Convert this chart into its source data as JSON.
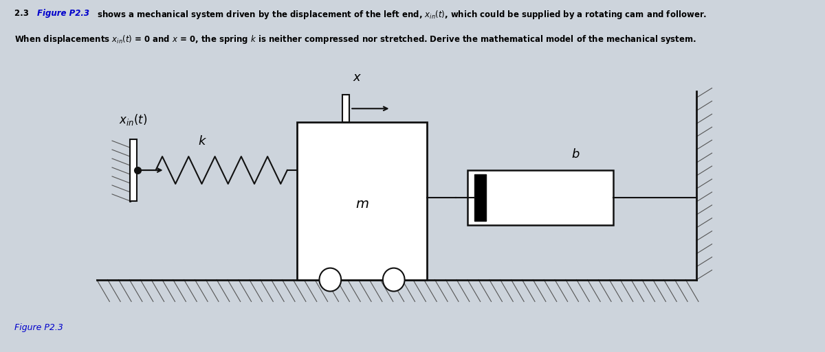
{
  "bg_color": "#cdd4dc",
  "figure_label": "Figure P2.3",
  "label_xin": "$x_{in}(t)$",
  "label_x": "$x$",
  "label_k": "$k$",
  "label_m": "$m$",
  "label_b": "$b$",
  "hatch_color": "#555555",
  "mass_color": "#ffffff",
  "spring_color": "#111111",
  "line_color": "#111111",
  "dot_color": "#111111",
  "text_color": "#111111",
  "blue_color": "#0000cc"
}
